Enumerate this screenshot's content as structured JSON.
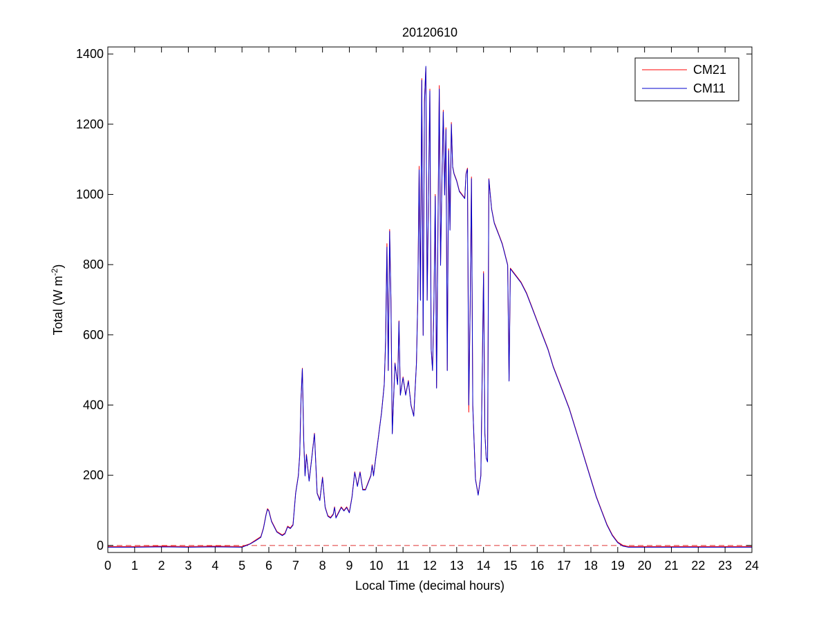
{
  "chart_data": {
    "type": "line",
    "title": "20120610",
    "xlabel": "Local Time (decimal hours)",
    "ylabel": {
      "base": "Total (W m",
      "sup": "-2",
      "close": ")"
    },
    "xlim": [
      0,
      24
    ],
    "ylim": [
      -20,
      1420
    ],
    "xticks": [
      0,
      1,
      2,
      3,
      4,
      5,
      6,
      7,
      8,
      9,
      10,
      11,
      12,
      13,
      14,
      15,
      16,
      17,
      18,
      19,
      20,
      21,
      22,
      23,
      24
    ],
    "yticks": [
      0,
      200,
      400,
      600,
      800,
      1000,
      1200,
      1400
    ],
    "grid": false,
    "legend_position": "top-right",
    "reference_line": {
      "y": 0,
      "color": "#e03030",
      "style": "dashed"
    },
    "series": [
      {
        "name": "CM21",
        "color": "#ff0000",
        "points": [
          [
            0,
            -3
          ],
          [
            1,
            -3
          ],
          [
            2,
            -2
          ],
          [
            3,
            -3
          ],
          [
            4,
            -2
          ],
          [
            5,
            -3
          ],
          [
            5.3,
            5
          ],
          [
            5.5,
            15
          ],
          [
            5.7,
            25
          ],
          [
            5.8,
            50
          ],
          [
            5.9,
            90
          ],
          [
            5.95,
            105
          ],
          [
            6.0,
            100
          ],
          [
            6.1,
            70
          ],
          [
            6.3,
            40
          ],
          [
            6.5,
            30
          ],
          [
            6.6,
            35
          ],
          [
            6.7,
            55
          ],
          [
            6.8,
            50
          ],
          [
            6.9,
            60
          ],
          [
            7.0,
            150
          ],
          [
            7.1,
            200
          ],
          [
            7.15,
            260
          ],
          [
            7.2,
            420
          ],
          [
            7.25,
            505
          ],
          [
            7.3,
            300
          ],
          [
            7.35,
            200
          ],
          [
            7.4,
            260
          ],
          [
            7.5,
            185
          ],
          [
            7.6,
            250
          ],
          [
            7.7,
            320
          ],
          [
            7.8,
            150
          ],
          [
            7.9,
            130
          ],
          [
            8.0,
            195
          ],
          [
            8.1,
            110
          ],
          [
            8.2,
            85
          ],
          [
            8.3,
            80
          ],
          [
            8.4,
            90
          ],
          [
            8.45,
            110
          ],
          [
            8.5,
            80
          ],
          [
            8.6,
            95
          ],
          [
            8.7,
            110
          ],
          [
            8.8,
            100
          ],
          [
            8.9,
            110
          ],
          [
            9.0,
            95
          ],
          [
            9.1,
            140
          ],
          [
            9.2,
            210
          ],
          [
            9.3,
            170
          ],
          [
            9.4,
            210
          ],
          [
            9.5,
            160
          ],
          [
            9.6,
            160
          ],
          [
            9.7,
            180
          ],
          [
            9.8,
            200
          ],
          [
            9.85,
            230
          ],
          [
            9.9,
            200
          ],
          [
            10.0,
            260
          ],
          [
            10.1,
            320
          ],
          [
            10.2,
            380
          ],
          [
            10.3,
            460
          ],
          [
            10.35,
            580
          ],
          [
            10.4,
            860
          ],
          [
            10.45,
            500
          ],
          [
            10.5,
            900
          ],
          [
            10.55,
            700
          ],
          [
            10.6,
            320
          ],
          [
            10.7,
            520
          ],
          [
            10.8,
            460
          ],
          [
            10.85,
            640
          ],
          [
            10.9,
            430
          ],
          [
            11.0,
            480
          ],
          [
            11.1,
            430
          ],
          [
            11.2,
            470
          ],
          [
            11.3,
            400
          ],
          [
            11.4,
            370
          ],
          [
            11.5,
            520
          ],
          [
            11.55,
            700
          ],
          [
            11.6,
            1080
          ],
          [
            11.65,
            700
          ],
          [
            11.7,
            1330
          ],
          [
            11.75,
            600
          ],
          [
            11.8,
            1270
          ],
          [
            11.85,
            1360
          ],
          [
            11.9,
            700
          ],
          [
            12.0,
            1300
          ],
          [
            12.05,
            560
          ],
          [
            12.1,
            500
          ],
          [
            12.15,
            680
          ],
          [
            12.2,
            1000
          ],
          [
            12.25,
            450
          ],
          [
            12.3,
            900
          ],
          [
            12.35,
            1310
          ],
          [
            12.4,
            800
          ],
          [
            12.45,
            1050
          ],
          [
            12.5,
            1240
          ],
          [
            12.55,
            1000
          ],
          [
            12.6,
            1190
          ],
          [
            12.65,
            500
          ],
          [
            12.7,
            1130
          ],
          [
            12.75,
            900
          ],
          [
            12.8,
            1205
          ],
          [
            12.85,
            1080
          ],
          [
            12.9,
            1060
          ],
          [
            13.0,
            1040
          ],
          [
            13.1,
            1010
          ],
          [
            13.2,
            1000
          ],
          [
            13.3,
            990
          ],
          [
            13.35,
            1060
          ],
          [
            13.4,
            1075
          ],
          [
            13.45,
            380
          ],
          [
            13.5,
            680
          ],
          [
            13.55,
            1050
          ],
          [
            13.6,
            400
          ],
          [
            13.7,
            190
          ],
          [
            13.8,
            145
          ],
          [
            13.9,
            200
          ],
          [
            14.0,
            780
          ],
          [
            14.05,
            320
          ],
          [
            14.1,
            250
          ],
          [
            14.15,
            240
          ],
          [
            14.2,
            1045
          ],
          [
            14.3,
            960
          ],
          [
            14.4,
            920
          ],
          [
            14.5,
            900
          ],
          [
            14.6,
            880
          ],
          [
            14.7,
            860
          ],
          [
            14.8,
            830
          ],
          [
            14.9,
            800
          ],
          [
            14.95,
            470
          ],
          [
            15.0,
            790
          ],
          [
            15.2,
            770
          ],
          [
            15.4,
            750
          ],
          [
            15.6,
            720
          ],
          [
            15.8,
            680
          ],
          [
            16.0,
            640
          ],
          [
            16.2,
            600
          ],
          [
            16.4,
            560
          ],
          [
            16.6,
            510
          ],
          [
            16.8,
            470
          ],
          [
            17.0,
            430
          ],
          [
            17.2,
            390
          ],
          [
            17.4,
            340
          ],
          [
            17.6,
            290
          ],
          [
            17.8,
            240
          ],
          [
            18.0,
            190
          ],
          [
            18.2,
            140
          ],
          [
            18.4,
            100
          ],
          [
            18.6,
            60
          ],
          [
            18.8,
            30
          ],
          [
            19.0,
            10
          ],
          [
            19.2,
            0
          ],
          [
            19.4,
            -3
          ],
          [
            20,
            -3
          ],
          [
            21,
            -3
          ],
          [
            22,
            -3
          ],
          [
            23,
            -3
          ],
          [
            24,
            -3
          ]
        ]
      },
      {
        "name": "CM11",
        "color": "#0000cc",
        "points": [
          [
            0,
            -5
          ],
          [
            1,
            -5
          ],
          [
            2,
            -4
          ],
          [
            3,
            -5
          ],
          [
            4,
            -4
          ],
          [
            5,
            -5
          ],
          [
            5.3,
            4
          ],
          [
            5.5,
            13
          ],
          [
            5.7,
            23
          ],
          [
            5.8,
            48
          ],
          [
            5.9,
            88
          ],
          [
            5.95,
            103
          ],
          [
            6.0,
            98
          ],
          [
            6.1,
            68
          ],
          [
            6.3,
            38
          ],
          [
            6.5,
            28
          ],
          [
            6.6,
            33
          ],
          [
            6.7,
            53
          ],
          [
            6.8,
            48
          ],
          [
            6.9,
            58
          ],
          [
            7.0,
            148
          ],
          [
            7.1,
            198
          ],
          [
            7.15,
            258
          ],
          [
            7.2,
            418
          ],
          [
            7.25,
            503
          ],
          [
            7.3,
            298
          ],
          [
            7.35,
            198
          ],
          [
            7.4,
            258
          ],
          [
            7.5,
            183
          ],
          [
            7.6,
            248
          ],
          [
            7.7,
            318
          ],
          [
            7.8,
            148
          ],
          [
            7.9,
            128
          ],
          [
            8.0,
            193
          ],
          [
            8.1,
            108
          ],
          [
            8.2,
            83
          ],
          [
            8.3,
            78
          ],
          [
            8.4,
            88
          ],
          [
            8.45,
            108
          ],
          [
            8.5,
            78
          ],
          [
            8.6,
            93
          ],
          [
            8.7,
            108
          ],
          [
            8.8,
            98
          ],
          [
            8.9,
            108
          ],
          [
            9.0,
            93
          ],
          [
            9.1,
            138
          ],
          [
            9.2,
            208
          ],
          [
            9.3,
            168
          ],
          [
            9.4,
            208
          ],
          [
            9.5,
            158
          ],
          [
            9.6,
            158
          ],
          [
            9.7,
            178
          ],
          [
            9.8,
            198
          ],
          [
            9.85,
            228
          ],
          [
            9.9,
            198
          ],
          [
            10.0,
            258
          ],
          [
            10.1,
            318
          ],
          [
            10.2,
            378
          ],
          [
            10.3,
            458
          ],
          [
            10.35,
            578
          ],
          [
            10.4,
            850
          ],
          [
            10.45,
            498
          ],
          [
            10.5,
            895
          ],
          [
            10.55,
            698
          ],
          [
            10.6,
            318
          ],
          [
            10.7,
            518
          ],
          [
            10.8,
            458
          ],
          [
            10.85,
            638
          ],
          [
            10.9,
            428
          ],
          [
            11.0,
            478
          ],
          [
            11.1,
            428
          ],
          [
            11.2,
            468
          ],
          [
            11.3,
            398
          ],
          [
            11.4,
            368
          ],
          [
            11.5,
            518
          ],
          [
            11.55,
            698
          ],
          [
            11.6,
            1070
          ],
          [
            11.65,
            698
          ],
          [
            11.7,
            1325
          ],
          [
            11.75,
            598
          ],
          [
            11.8,
            1265
          ],
          [
            11.85,
            1365
          ],
          [
            11.9,
            698
          ],
          [
            12.0,
            1295
          ],
          [
            12.05,
            558
          ],
          [
            12.1,
            498
          ],
          [
            12.15,
            678
          ],
          [
            12.2,
            995
          ],
          [
            12.25,
            448
          ],
          [
            12.3,
            898
          ],
          [
            12.35,
            1300
          ],
          [
            12.4,
            798
          ],
          [
            12.45,
            1045
          ],
          [
            12.5,
            1235
          ],
          [
            12.55,
            998
          ],
          [
            12.6,
            1185
          ],
          [
            12.65,
            498
          ],
          [
            12.7,
            1125
          ],
          [
            12.75,
            898
          ],
          [
            12.8,
            1200
          ],
          [
            12.85,
            1078
          ],
          [
            12.9,
            1058
          ],
          [
            13.0,
            1038
          ],
          [
            13.1,
            1008
          ],
          [
            13.2,
            998
          ],
          [
            13.3,
            988
          ],
          [
            13.35,
            1058
          ],
          [
            13.4,
            1072
          ],
          [
            13.45,
            400
          ],
          [
            13.5,
            678
          ],
          [
            13.55,
            1045
          ],
          [
            13.6,
            398
          ],
          [
            13.7,
            188
          ],
          [
            13.8,
            143
          ],
          [
            13.9,
            198
          ],
          [
            14.0,
            775
          ],
          [
            14.05,
            318
          ],
          [
            14.1,
            248
          ],
          [
            14.15,
            238
          ],
          [
            14.2,
            1043
          ],
          [
            14.3,
            958
          ],
          [
            14.4,
            918
          ],
          [
            14.5,
            898
          ],
          [
            14.6,
            878
          ],
          [
            14.7,
            858
          ],
          [
            14.8,
            828
          ],
          [
            14.9,
            798
          ],
          [
            14.95,
            468
          ],
          [
            15.0,
            788
          ],
          [
            15.2,
            768
          ],
          [
            15.4,
            748
          ],
          [
            15.6,
            718
          ],
          [
            15.8,
            678
          ],
          [
            16.0,
            638
          ],
          [
            16.2,
            598
          ],
          [
            16.4,
            558
          ],
          [
            16.6,
            508
          ],
          [
            16.8,
            468
          ],
          [
            17.0,
            428
          ],
          [
            17.2,
            388
          ],
          [
            17.4,
            338
          ],
          [
            17.6,
            288
          ],
          [
            17.8,
            238
          ],
          [
            18.0,
            188
          ],
          [
            18.2,
            138
          ],
          [
            18.4,
            98
          ],
          [
            18.6,
            58
          ],
          [
            18.8,
            28
          ],
          [
            19.0,
            8
          ],
          [
            19.2,
            -2
          ],
          [
            19.4,
            -5
          ],
          [
            20,
            -5
          ],
          [
            21,
            -5
          ],
          [
            22,
            -5
          ],
          [
            23,
            -5
          ],
          [
            24,
            -5
          ]
        ]
      }
    ]
  }
}
